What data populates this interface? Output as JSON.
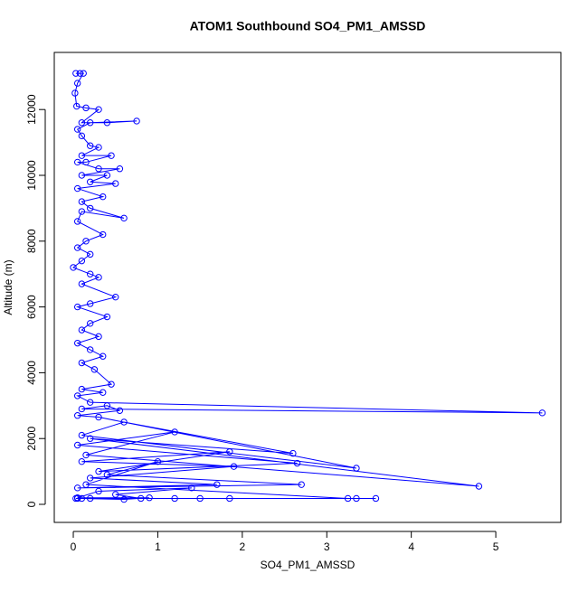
{
  "chart_data": {
    "type": "line",
    "title": "ATOM1 Southbound SO4_PM1_AMSSD",
    "x_label": "SO4_PM1_AMSSD",
    "y_label": "Altitude (m)",
    "color": "#0000ff",
    "marker": "circle",
    "xlim": [
      -0.225,
      5.77
    ],
    "ylim": [
      -549,
      13736
    ],
    "xticks": [
      0,
      1,
      2,
      3,
      4,
      5
    ],
    "yticks": [
      0,
      2000,
      4000,
      6000,
      8000,
      10000,
      12000
    ],
    "x": [
      0.03,
      0.08,
      0.12,
      0.05,
      0.02,
      0.04,
      0.15,
      0.3,
      0.1,
      0.4,
      0.75,
      0.2,
      0.05,
      0.1,
      0.2,
      0.3,
      0.1,
      0.45,
      0.15,
      0.05,
      0.3,
      0.55,
      0.1,
      0.4,
      0.2,
      0.5,
      0.05,
      0.35,
      0.1,
      0.2,
      0.6,
      0.1,
      0.05,
      0.35,
      0.15,
      0.05,
      0.2,
      0.1,
      0.0,
      0.2,
      0.3,
      0.1,
      0.5,
      0.2,
      0.05,
      0.4,
      0.2,
      0.1,
      0.3,
      0.05,
      0.2,
      0.35,
      0.1,
      0.25,
      0.45,
      0.1,
      0.35,
      0.05,
      0.2,
      5.55,
      0.1,
      0.4,
      0.55,
      0.05,
      0.3,
      3.35,
      0.1,
      0.6,
      2.6,
      0.2,
      4.8,
      0.15,
      1.2,
      0.05,
      2.65,
      0.3,
      1.85,
      0.1,
      1.9,
      0.2,
      1.7,
      0.05,
      2.7,
      0.4,
      1.0,
      0.15,
      3.25,
      3.35,
      3.58,
      0.2,
      1.85,
      1.5,
      1.2,
      0.05,
      0.8,
      0.5,
      1.4,
      0.3,
      0.05,
      0.9,
      0.6,
      0.1,
      0.03
    ],
    "values": [
      13100,
      13100,
      13100,
      12800,
      12500,
      12100,
      12050,
      12000,
      11600,
      11600,
      11650,
      11600,
      11400,
      11200,
      10900,
      10850,
      10600,
      10600,
      10400,
      10400,
      10200,
      10200,
      10000,
      10000,
      9800,
      9750,
      9600,
      9350,
      9200,
      9000,
      8700,
      8900,
      8600,
      8200,
      8000,
      7800,
      7600,
      7400,
      7200,
      7000,
      6900,
      6700,
      6300,
      6100,
      6000,
      5700,
      5500,
      5300,
      5100,
      4900,
      4700,
      4500,
      4300,
      4100,
      3650,
      3500,
      3400,
      3300,
      3100,
      2780,
      2900,
      3000,
      2850,
      2700,
      2650,
      1100,
      2100,
      2500,
      1550,
      2000,
      550,
      1500,
      2200,
      1800,
      1250,
      1000,
      1600,
      1300,
      1150,
      800,
      600,
      500,
      600,
      900,
      1300,
      600,
      180,
      180,
      180,
      180,
      180,
      180,
      180,
      180,
      180,
      300,
      500,
      400,
      200,
      200,
      150,
      180,
      180
    ]
  }
}
